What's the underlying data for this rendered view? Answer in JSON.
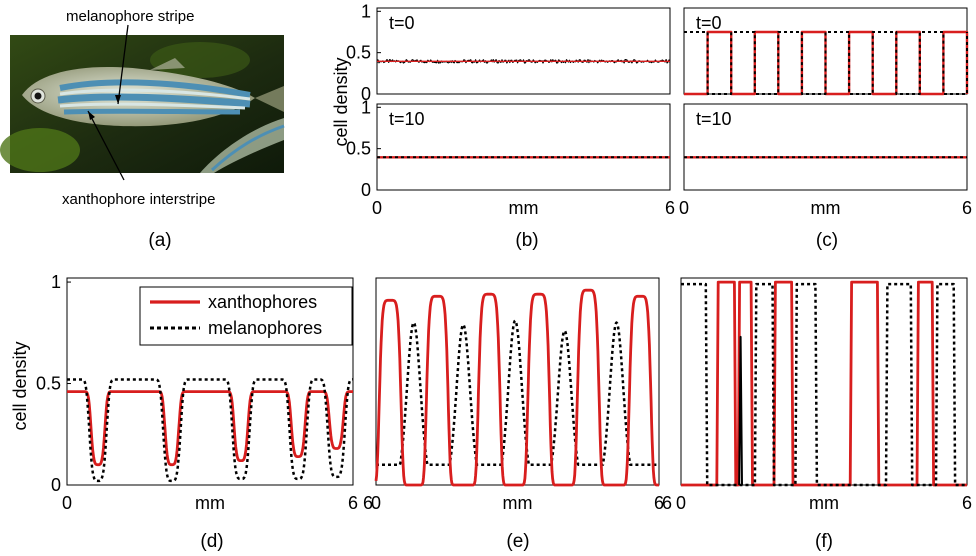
{
  "photo": {
    "label_top": "melanophore stripe",
    "label_bottom": "xanthophore interstripe",
    "colors": {
      "water_dark": "#1f2a12",
      "water_green": "#3f5a1c",
      "stripe_blue": "#4d8fb4",
      "stripe_light": "#cfe0e0"
    }
  },
  "panel_labels": {
    "a": "(a)",
    "b": "(b)",
    "c": "(c)",
    "d": "(d)",
    "e": "(e)",
    "f": "(f)"
  },
  "colors": {
    "xanthophores": "#d81e1e",
    "melanophores": "#000000"
  },
  "chart_data": [
    {
      "id": "b",
      "type": "line",
      "ylabel": "cell density",
      "xlabel": "mm",
      "xlim": [
        0,
        6
      ],
      "subplots": [
        {
          "title": "t=0",
          "ylim": [
            0,
            1
          ],
          "yticks": [
            "1",
            "0.5",
            "0"
          ],
          "series": [
            {
              "name": "xanthophores",
              "values": [
                0.38,
                0.38
              ]
            },
            {
              "name": "melanophores",
              "values": [
                0.38,
                0.38
              ]
            }
          ]
        },
        {
          "title": "t=10",
          "ylim": [
            0,
            1
          ],
          "yticks": [
            "1",
            "0.5",
            "0"
          ],
          "series": [
            {
              "name": "xanthophores",
              "values": [
                0.38,
                0.38
              ]
            },
            {
              "name": "melanophores",
              "values": [
                0.38,
                0.38
              ]
            }
          ]
        }
      ],
      "xticks": [
        "0",
        "mm",
        "6"
      ]
    },
    {
      "id": "c",
      "type": "line",
      "xlabel": "mm",
      "xlim": [
        0,
        6
      ],
      "subplots": [
        {
          "title": "t=0",
          "ylim": [
            0,
            1
          ],
          "series": [
            {
              "name": "xanthophores",
              "high": 0.75,
              "low": 0,
              "period": 1.0
            },
            {
              "name": "melanophores",
              "high": 0.75,
              "low": 0,
              "period": 1.0
            }
          ]
        },
        {
          "title": "t=10",
          "ylim": [
            0,
            1
          ],
          "series": [
            {
              "name": "xanthophores",
              "values": [
                0.38,
                0.38
              ]
            },
            {
              "name": "melanophores",
              "values": [
                0.38,
                0.38
              ]
            }
          ]
        }
      ],
      "xticks": [
        "0",
        "mm",
        "6"
      ]
    },
    {
      "id": "d",
      "type": "line",
      "ylabel": "cell density",
      "xlabel": "mm",
      "xlim": [
        0,
        6
      ],
      "ylim": [
        0,
        1
      ],
      "yticks": [
        "1",
        "0.5",
        "0"
      ],
      "xticks": [
        "0",
        "mm",
        "6"
      ],
      "legend": {
        "position": "top-right",
        "entries": [
          "xanthophores",
          "melanophores"
        ]
      },
      "series": [
        {
          "name": "xanthophores",
          "plateau": 0.46,
          "dips": [
            {
              "x": 0.65,
              "min": 0.1
            },
            {
              "x": 2.2,
              "min": 0.1
            },
            {
              "x": 3.65,
              "min": 0.12
            },
            {
              "x": 4.85,
              "min": 0.14
            },
            {
              "x": 5.65,
              "min": 0.18
            }
          ]
        },
        {
          "name": "melanophores",
          "plateau": 0.52,
          "dips": [
            {
              "x": 0.65,
              "min": 0.02
            },
            {
              "x": 2.2,
              "min": 0.02
            },
            {
              "x": 3.65,
              "min": 0.03
            },
            {
              "x": 4.85,
              "min": 0.03
            },
            {
              "x": 5.65,
              "min": 0.04
            }
          ]
        }
      ]
    },
    {
      "id": "e",
      "type": "line",
      "xlabel": "mm",
      "xlim": [
        0,
        6
      ],
      "ylim": [
        0,
        1
      ],
      "xticks": [
        "6",
        "0",
        "mm",
        "6"
      ],
      "series": [
        {
          "name": "xanthophores",
          "peaks": [
            {
              "x": 0.3,
              "h": 0.91
            },
            {
              "x": 1.3,
              "h": 0.93
            },
            {
              "x": 2.4,
              "h": 0.94
            },
            {
              "x": 3.45,
              "h": 0.94
            },
            {
              "x": 4.5,
              "h": 0.96
            },
            {
              "x": 5.6,
              "h": 0.93
            }
          ]
        },
        {
          "name": "melanophores",
          "peaks": [
            {
              "x": 0.8,
              "h": 0.8
            },
            {
              "x": 1.85,
              "h": 0.79
            },
            {
              "x": 2.95,
              "h": 0.81
            },
            {
              "x": 4.0,
              "h": 0.76
            },
            {
              "x": 5.1,
              "h": 0.8
            }
          ],
          "base": 0.1
        }
      ]
    },
    {
      "id": "f",
      "type": "line",
      "xlabel": "mm",
      "xlim": [
        0,
        6
      ],
      "ylim": [
        0,
        1
      ],
      "xticks": [
        "6",
        "0",
        "mm",
        "6"
      ],
      "series": [
        {
          "name": "xanthophores",
          "high": 1.0,
          "low": 0.0,
          "on": [
            [
              0.75,
              1.15
            ],
            [
              1.2,
              1.5
            ],
            [
              1.95,
              2.35
            ],
            [
              3.55,
              4.15
            ],
            [
              4.95,
              5.3
            ]
          ]
        },
        {
          "name": "melanophores",
          "high": 0.99,
          "low": 0.0,
          "on": [
            [
              0,
              0.55
            ],
            [
              1.55,
              1.95
            ],
            [
              2.4,
              2.85
            ],
            [
              4.3,
              4.85
            ],
            [
              5.35,
              5.75
            ]
          ],
          "spike": {
            "x": 1.25,
            "h": 0.73
          }
        }
      ]
    }
  ]
}
